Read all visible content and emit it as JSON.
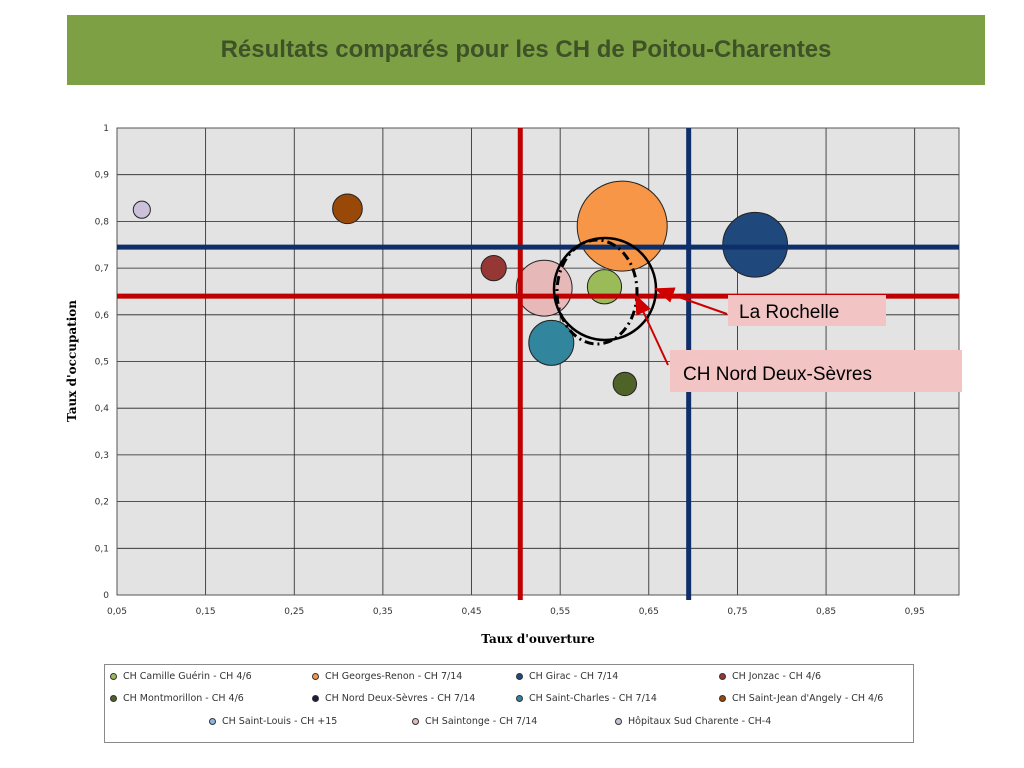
{
  "title": "Résultats comparés pour les CH de Poitou-Charentes",
  "chart_data": {
    "type": "bubble",
    "xlabel": "Taux d'ouverture",
    "ylabel": "Taux d'occupation",
    "xlim": [
      0.05,
      1.0
    ],
    "ylim": [
      0,
      1
    ],
    "xticks": [
      "0,05",
      "0,15",
      "0,25",
      "0,35",
      "0,45",
      "0,55",
      "0,65",
      "0,75",
      "0,85",
      "0,95"
    ],
    "xtick_values": [
      0.05,
      0.15,
      0.25,
      0.35,
      0.45,
      0.55,
      0.65,
      0.75,
      0.85,
      0.95
    ],
    "yticks": [
      "0",
      "0,1",
      "0,2",
      "0,3",
      "0,4",
      "0,5",
      "0,6",
      "0,7",
      "0,8",
      "0,9",
      "1"
    ],
    "ytick_values": [
      0,
      0.1,
      0.2,
      0.3,
      0.4,
      0.5,
      0.6,
      0.7,
      0.8,
      0.9,
      1
    ],
    "grid": true,
    "legend_position": "bottom",
    "series": [
      {
        "name": "CH Camille Guérin - CH 4/6",
        "x": 0.6,
        "y": 0.66,
        "size": 0.38,
        "color": "#9bbb59"
      },
      {
        "name": "CH Georges-Renon - CH 7/14",
        "x": 0.62,
        "y": 0.79,
        "size": 1.0,
        "color": "#f79646"
      },
      {
        "name": "CH Girac - CH 7/14",
        "x": 0.77,
        "y": 0.75,
        "size": 0.72,
        "color": "#1f497d"
      },
      {
        "name": "CH Jonzac - CH 4/6",
        "x": 0.475,
        "y": 0.7,
        "size": 0.28,
        "color": "#953735"
      },
      {
        "name": "CH Montmorillon - CH 4/6",
        "x": 0.623,
        "y": 0.452,
        "size": 0.26,
        "color": "#4f6228"
      },
      {
        "name": "CH Nord Deux-Sèvres - CH 7/14",
        "x": 0.595,
        "y": 0.645,
        "size": 0.92,
        "color": "#1f1a40"
      },
      {
        "name": "CH Saint-Charles - CH 7/14",
        "x": 0.54,
        "y": 0.54,
        "size": 0.5,
        "color": "#31859c"
      },
      {
        "name": "CH Saint-Jean d'Angely - CH 4/6",
        "x": 0.31,
        "y": 0.827,
        "size": 0.33,
        "color": "#984807"
      },
      {
        "name": "CH Saint-Louis - CH +15",
        "x": 0.6,
        "y": 0.655,
        "size": 1.02,
        "color": "#8eb4e3"
      },
      {
        "name": "CH Saintonge - CH 7/14",
        "x": 0.532,
        "y": 0.657,
        "size": 0.62,
        "color": "#e6b9b8"
      },
      {
        "name": "Hôpitaux Sud Charente - CH-4",
        "x": 0.078,
        "y": 0.825,
        "size": 0.19,
        "color": "#ccc1da"
      }
    ],
    "reference_lines": {
      "vertical": [
        {
          "x": 0.505,
          "color": "#c00000"
        },
        {
          "x": 0.695,
          "color": "#0f2f6a"
        }
      ],
      "horizontal": [
        {
          "y": 0.64,
          "color": "#c00000"
        },
        {
          "y": 0.745,
          "color": "#0f2f6a"
        }
      ]
    },
    "annotations": [
      {
        "text": "La Rochelle",
        "bg": "#f2c4c4"
      },
      {
        "text": "CH Nord Deux-Sèvres",
        "bg": "#f2c4c4"
      }
    ]
  },
  "legend_rows": [
    [
      "CH Camille Guérin - CH 4/6",
      "CH Georges-Renon - CH 7/14",
      "CH Girac - CH 7/14",
      "CH Jonzac - CH 4/6"
    ],
    [
      "CH Montmorillon - CH 4/6",
      "CH Nord Deux-Sèvres - CH 7/14",
      "CH Saint-Charles - CH 7/14",
      "CH Saint-Jean d'Angely - CH 4/6"
    ],
    [
      "CH Saint-Louis - CH +15",
      "CH Saintonge - CH 7/14",
      "Hôpitaux Sud Charente - CH-4"
    ]
  ]
}
